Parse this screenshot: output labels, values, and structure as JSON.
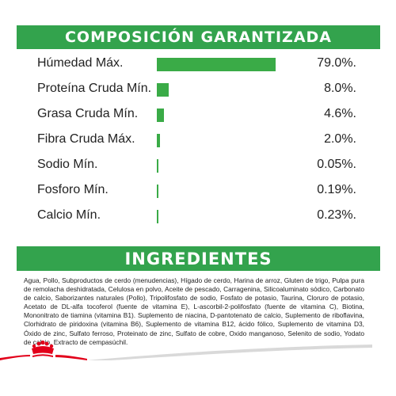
{
  "colors": {
    "accent": "#33a34d",
    "bar": "#3aab47",
    "footer_red": "#e2001a",
    "footer_grey": "#d9d9d9"
  },
  "composition": {
    "title": "COMPOSICIÓN GARANTIZADA",
    "rows": [
      {
        "label": "Húmedad Máx.",
        "value_text": "79.0%.",
        "percent": 79.0
      },
      {
        "label": "Proteína Cruda Mín.",
        "value_text": "8.0%.",
        "percent": 8.0
      },
      {
        "label": "Grasa Cruda Mín.",
        "value_text": "4.6%.",
        "percent": 4.6
      },
      {
        "label": "Fibra Cruda Máx.",
        "value_text": "2.0%.",
        "percent": 2.0
      },
      {
        "label": "Sodio Mín.",
        "value_text": "0.05%.",
        "percent": 0.05
      },
      {
        "label": "Fosforo Mín.",
        "value_text": "0.19%.",
        "percent": 0.19
      },
      {
        "label": "Calcio Mín.",
        "value_text": "0.23%.",
        "percent": 0.23
      }
    ]
  },
  "ingredients": {
    "title": "INGREDIENTES",
    "text": "Agua, Pollo, Subproductos de cerdo (menudencias), Hígado de cerdo, Harina de arroz, Gluten de trigo, Pulpa pura de remolacha deshidratada, Celulosa en polvo, Aceite de pescado, Carragenina, Silicoaluminato sódico, Carbonato de calcio, Saborizantes naturales (Pollo), Tripolifosfato de sodio, Fosfato de potasio, Taurina, Cloruro de potasio, Acetato de DL-alfa tocoferol (fuente de vitamina E), L-ascorbil-2-polifosfato (fuente de vitamina C), Biotina, Mononitrato de tiamina (vitamina B1). Suplemento de niacina, D-pantotenato de calcio, Suplemento de riboflavina, Clorhidrato de piridoxina (vitamina B6), Suplemento de vitamina B12, ácido fólico, Suplemento de vitamina D3, Óxido de zinc, Sulfato ferroso, Proteinato de zinc, Sulfato de cobre, Oxido manganoso, Selenito de sodio, Yodato de calcio, Extracto de cempasúchil."
  },
  "footer": {
    "logo_icon": "crown-icon"
  }
}
